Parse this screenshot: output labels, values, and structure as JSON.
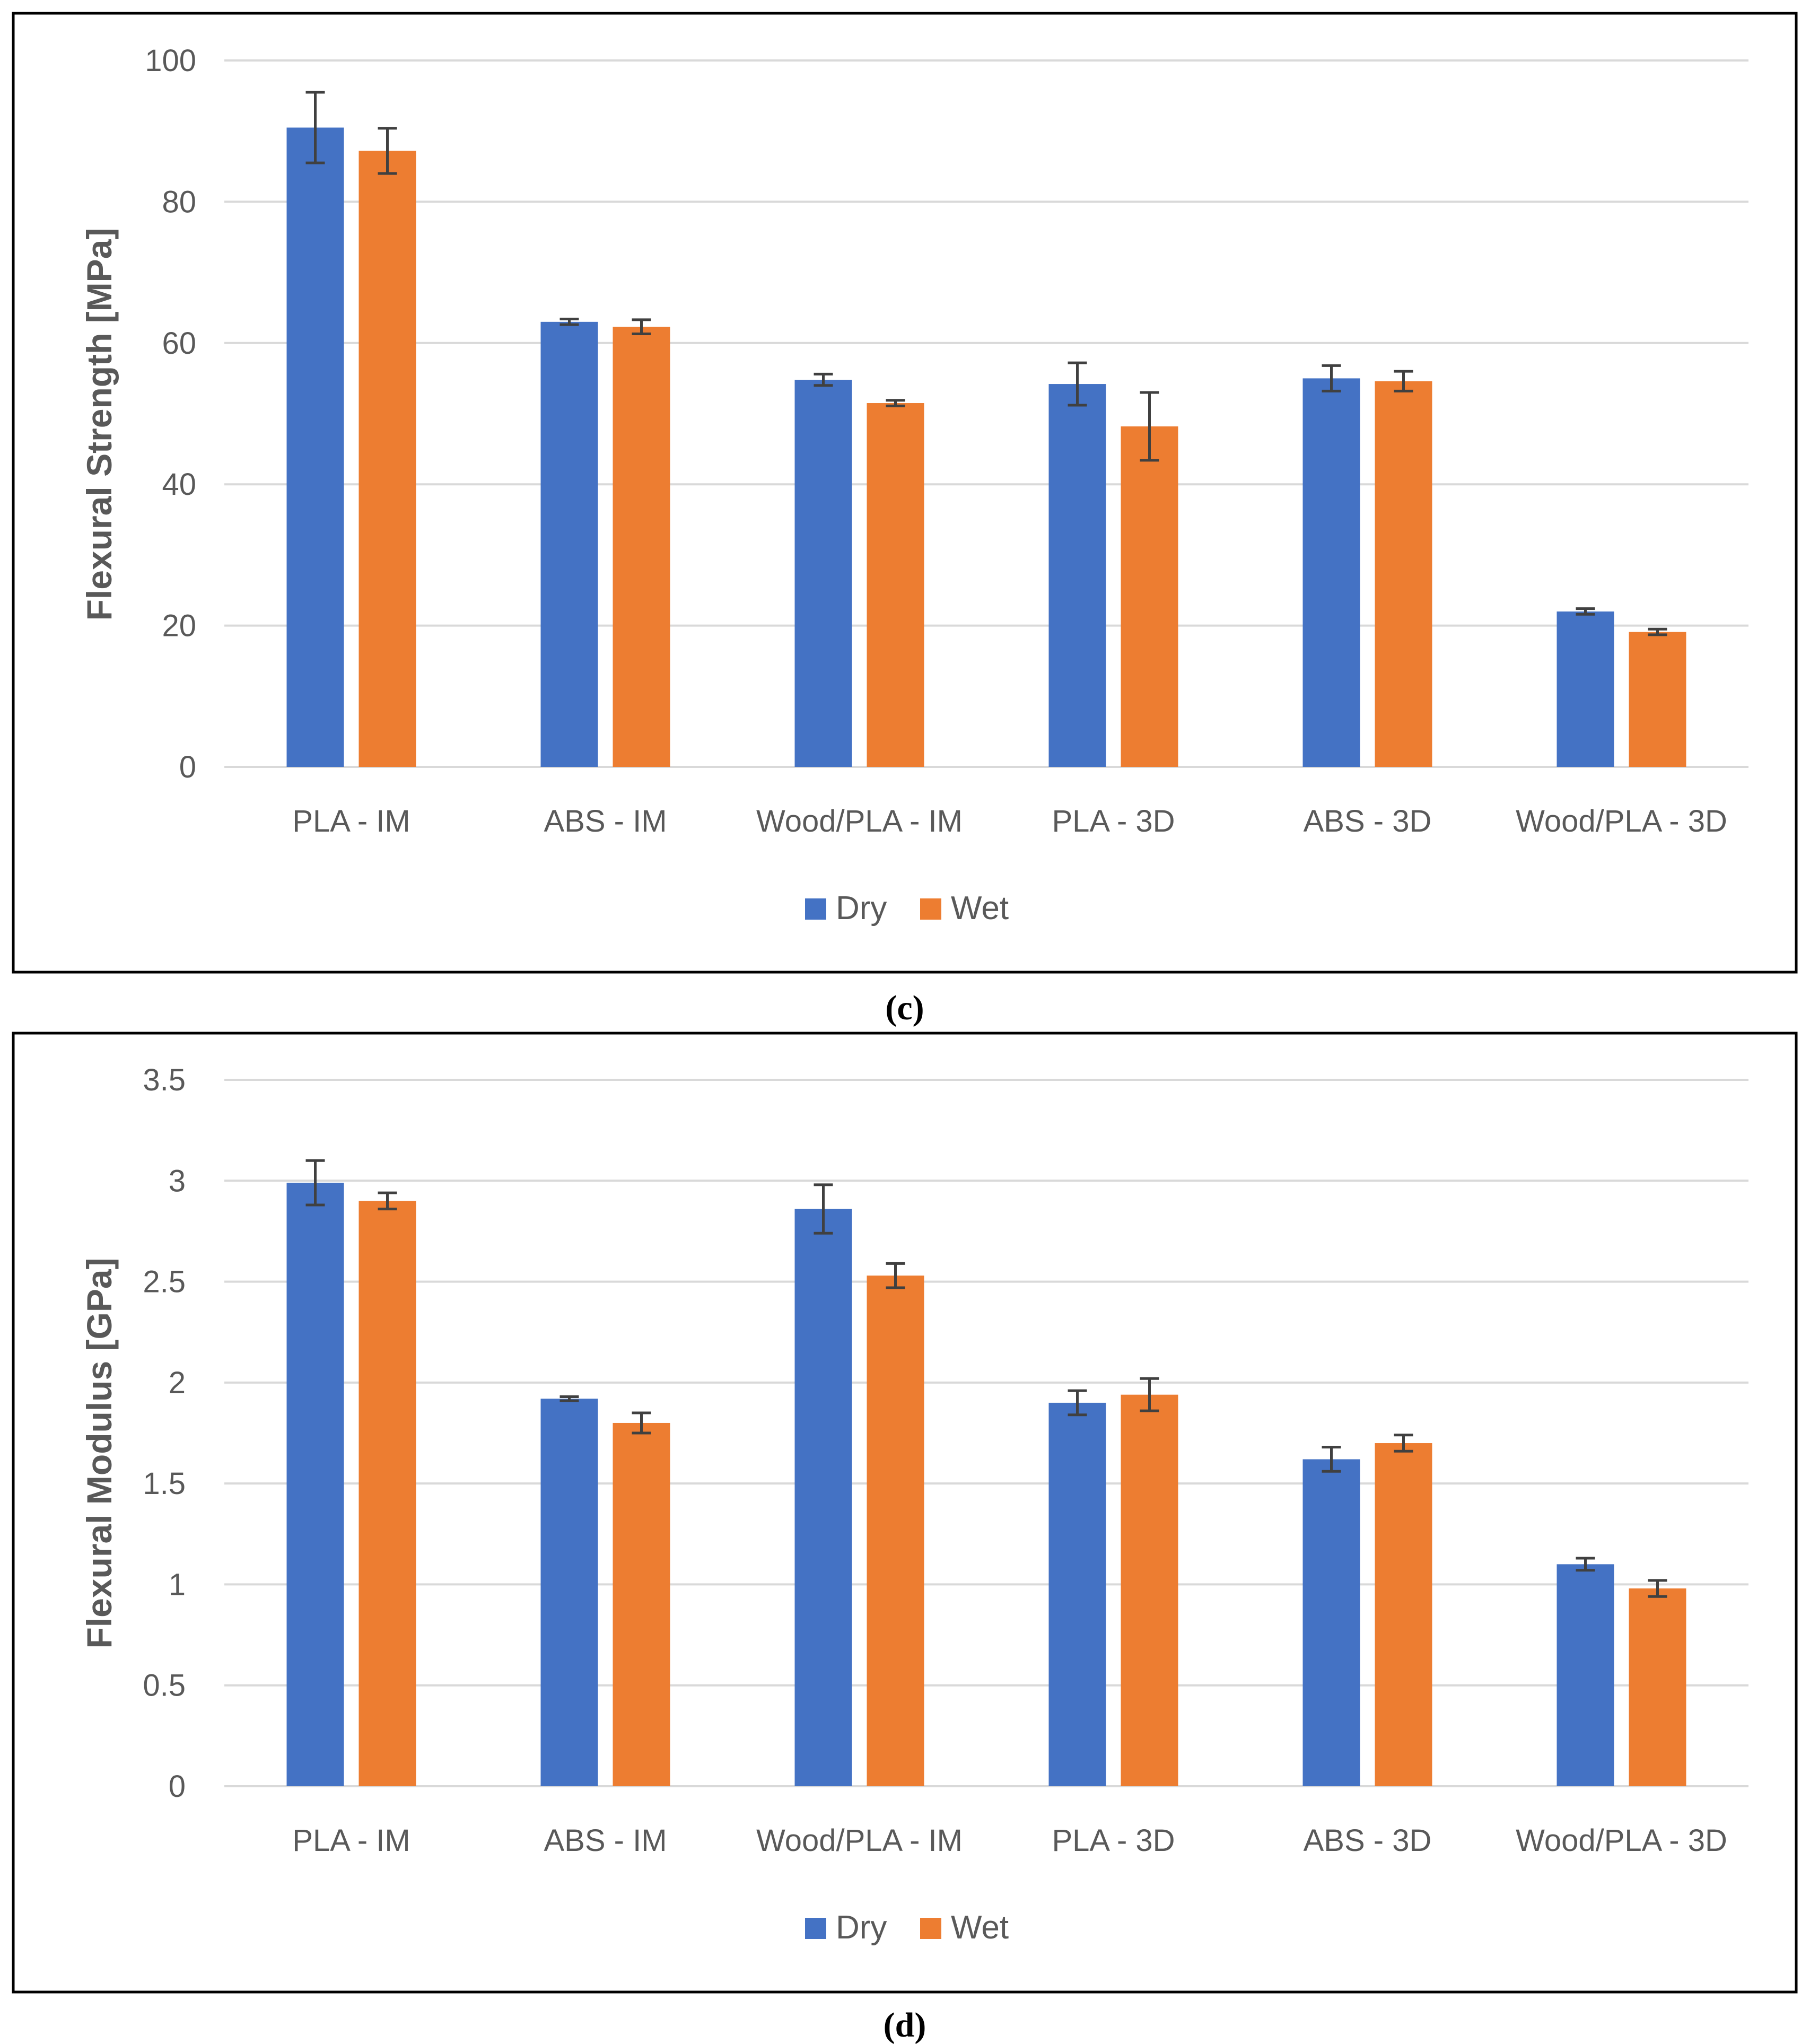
{
  "colors": {
    "dry": "#4472C4",
    "wet": "#ED7D31",
    "grid": "#D9D9D9",
    "text": "#595959",
    "error": "#404040"
  },
  "chart_data": [
    {
      "type": "bar",
      "caption": "(c)",
      "ylabel": "Flexural Strength [MPa]",
      "xlabel": "",
      "categories": [
        "PLA - IM",
        "ABS - IM",
        "Wood/PLA - IM",
        "PLA - 3D",
        "ABS - 3D",
        "Wood/PLA - 3D"
      ],
      "ylim": [
        0,
        100
      ],
      "yticks": [
        0,
        20,
        40,
        60,
        80,
        100
      ],
      "ytick_labels": [
        "0",
        "20",
        "40",
        "60",
        "80",
        "100"
      ],
      "grid": true,
      "legend": "bottom",
      "series": [
        {
          "name": "Dry",
          "values": [
            90.5,
            63.0,
            54.8,
            54.2,
            55.0,
            22.0
          ],
          "errors": [
            5.0,
            0.4,
            0.8,
            3.0,
            1.8,
            0.4
          ]
        },
        {
          "name": "Wet",
          "values": [
            87.2,
            62.3,
            51.5,
            48.2,
            54.6,
            19.1
          ],
          "errors": [
            3.2,
            1.0,
            0.4,
            4.8,
            1.4,
            0.4
          ]
        }
      ]
    },
    {
      "type": "bar",
      "caption": "(d)",
      "ylabel": "Flexural Modulus [GPa]",
      "xlabel": "",
      "categories": [
        "PLA - IM",
        "ABS - IM",
        "Wood/PLA - IM",
        "PLA - 3D",
        "ABS - 3D",
        "Wood/PLA - 3D"
      ],
      "ylim": [
        0,
        3.5
      ],
      "yticks": [
        0,
        0.5,
        1,
        1.5,
        2,
        2.5,
        3,
        3.5
      ],
      "ytick_labels": [
        "0",
        "0.5",
        "1",
        "1.5",
        "2",
        "2.5",
        "3",
        "3.5"
      ],
      "grid": true,
      "legend": "bottom",
      "series": [
        {
          "name": "Dry",
          "values": [
            2.99,
            1.92,
            2.86,
            1.9,
            1.62,
            1.1
          ],
          "errors": [
            0.11,
            0.01,
            0.12,
            0.06,
            0.06,
            0.03
          ]
        },
        {
          "name": "Wet",
          "values": [
            2.9,
            1.8,
            2.53,
            1.94,
            1.7,
            0.98
          ],
          "errors": [
            0.04,
            0.05,
            0.06,
            0.08,
            0.04,
            0.04
          ]
        }
      ]
    }
  ]
}
